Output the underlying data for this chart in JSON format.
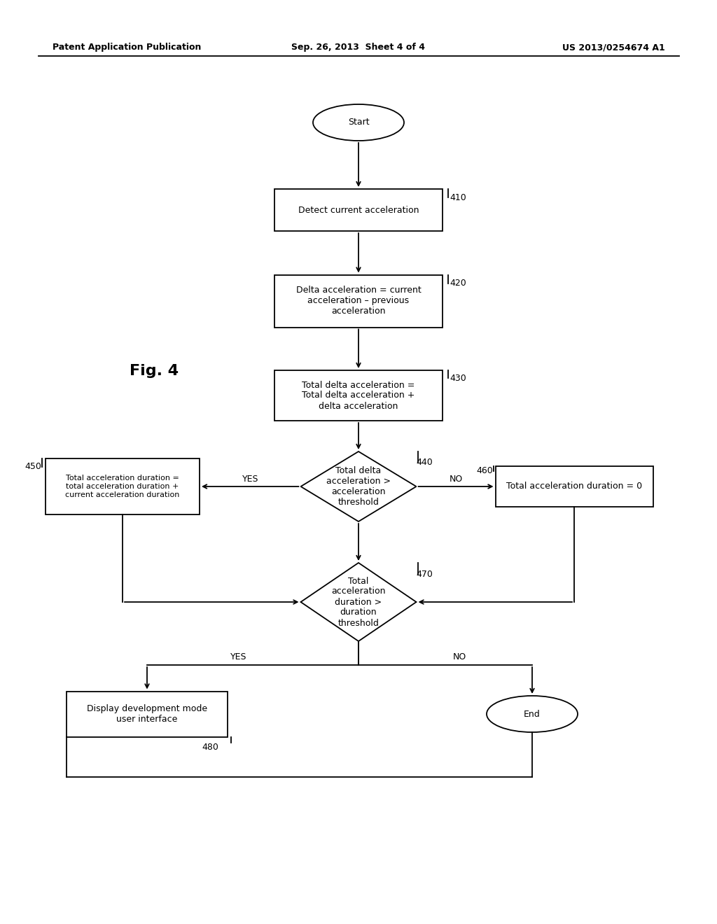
{
  "bg_color": "#ffffff",
  "line_color": "#000000",
  "text_color": "#000000",
  "header_left": "Patent Application Publication",
  "header_center": "Sep. 26, 2013  Sheet 4 of 4",
  "header_right": "US 2013/0254674 A1",
  "fig_label": "Fig. 4",
  "font_size_nodes": 9,
  "font_size_labels": 9,
  "font_size_header": 9,
  "font_size_fig": 16,
  "lw": 1.3
}
